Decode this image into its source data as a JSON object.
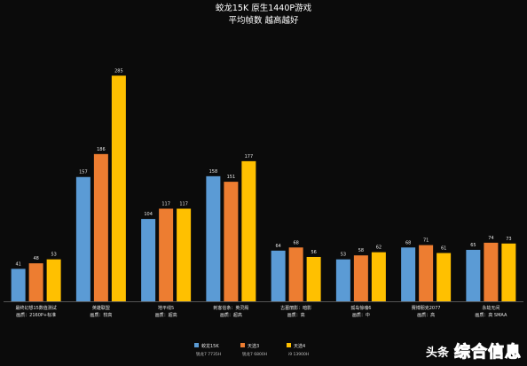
{
  "chart_data": {
    "type": "bar",
    "title": "蛟龙15K  原生1440P游戏",
    "subtitle": "平均帧数  越高越好",
    "categories": [
      "最终幻想15数值测试\n画质：2160P+标准",
      "英雄联盟\n画质：较高",
      "地平线5\n画质：超高",
      "刺客信条：英灵殿\n画质：超高",
      "古墓丽影：暗影\n画质：高",
      "孤岛惊魂6\n画质：中",
      "赛博朋克2077\n画质：高",
      "永劫无间\n画质：高 SMAA"
    ],
    "series": [
      {
        "name": "蛟龙15K",
        "color": "#5b9bd5",
        "values": [
          41,
          157,
          104,
          158,
          64,
          53,
          68,
          65
        ]
      },
      {
        "name": "天选3",
        "color": "#ed7d31",
        "values": [
          48,
          186,
          117,
          151,
          68,
          58,
          71,
          74
        ]
      },
      {
        "name": "天选4",
        "color": "#ffc000",
        "values": [
          53,
          285,
          117,
          177,
          56,
          62,
          61,
          73
        ]
      }
    ],
    "legend_specs": [
      "锐龙7 7735H",
      "锐龙7 6800H",
      "i9 13900H"
    ],
    "ylim": [
      0,
      300
    ],
    "grid": false,
    "legend_position": "bottom"
  },
  "watermark": {
    "prefix": "头条",
    "brand": "综合信息"
  }
}
